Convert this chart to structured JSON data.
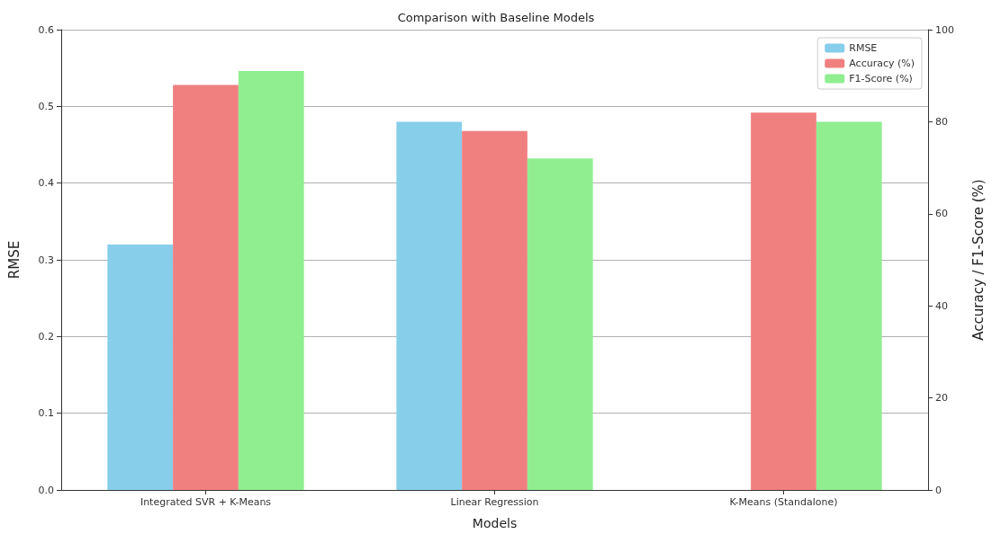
{
  "chart_data": {
    "type": "bar",
    "title": "Comparison with Baseline Models",
    "xlabel": "Models",
    "ylabel": "RMSE",
    "y2label": "Accuracy / F1-Score (%)",
    "categories": [
      "Integrated SVR + K-Means",
      "Linear Regression",
      "K-Means (Standalone)"
    ],
    "series": [
      {
        "name": "RMSE",
        "color": "#87ceeb",
        "values": [
          0.32,
          0.48,
          null
        ]
      },
      {
        "name": "Accuracy (%)",
        "color": "#f08080",
        "values": [
          88,
          78,
          82
        ],
        "axis": "y2"
      },
      {
        "name": "F1-Score (%)",
        "color": "#90ee90",
        "values": [
          91,
          72,
          80
        ],
        "axis": "y2"
      }
    ],
    "ylim": [
      0,
      0.6
    ],
    "yticks": [
      {
        "value": 0,
        "label": "0.0"
      },
      0.1,
      0.2,
      0.3,
      0.4,
      0.5,
      0.6
    ],
    "y2lim": [
      0,
      100
    ],
    "y2ticks": [
      0,
      20,
      40,
      60,
      80,
      100
    ],
    "grid": "y",
    "legend": "top right"
  }
}
